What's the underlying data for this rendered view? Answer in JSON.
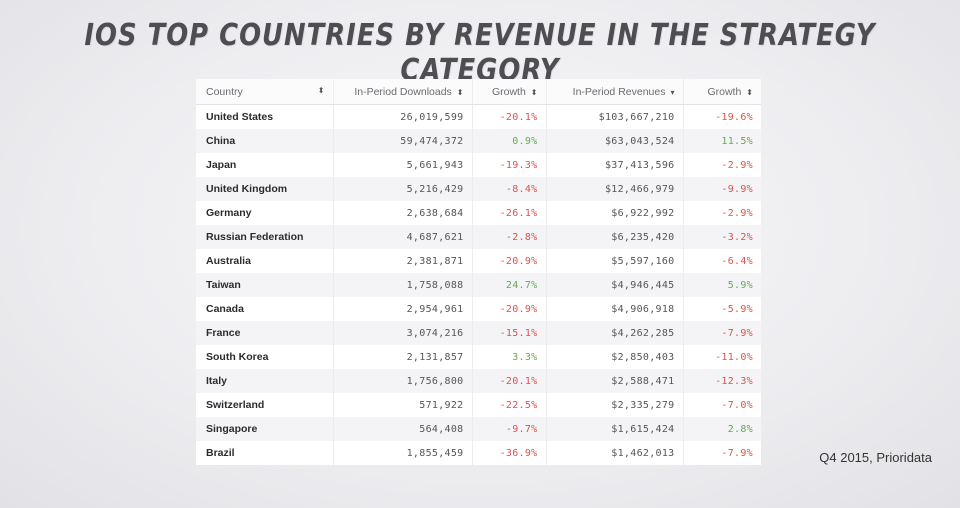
{
  "title": "iOS Top Countries by Revenue in the Strategy Category",
  "source": "Q4 2015, Prioridata",
  "table": {
    "headers": {
      "country": "Country",
      "downloads": "In-Period Downloads",
      "downloads_growth": "Growth",
      "revenues": "In-Period Revenues",
      "revenues_growth": "Growth"
    },
    "sort_icons": {
      "country": "⬍",
      "downloads": "⬍",
      "downloads_growth": "⬍",
      "revenues": "▾",
      "revenues_growth": "⬍"
    },
    "rows": [
      {
        "country": "United States",
        "downloads": "26,019,599",
        "dl_growth": "-20.1%",
        "revenues": "$103,667,210",
        "rev_growth": "-19.6%"
      },
      {
        "country": "China",
        "downloads": "59,474,372",
        "dl_growth": "0.9%",
        "revenues": "$63,043,524",
        "rev_growth": "11.5%"
      },
      {
        "country": "Japan",
        "downloads": "5,661,943",
        "dl_growth": "-19.3%",
        "revenues": "$37,413,596",
        "rev_growth": "-2.9%"
      },
      {
        "country": "United Kingdom",
        "downloads": "5,216,429",
        "dl_growth": "-8.4%",
        "revenues": "$12,466,979",
        "rev_growth": "-9.9%"
      },
      {
        "country": "Germany",
        "downloads": "2,638,684",
        "dl_growth": "-26.1%",
        "revenues": "$6,922,992",
        "rev_growth": "-2.9%"
      },
      {
        "country": "Russian Federation",
        "downloads": "4,687,621",
        "dl_growth": "-2.8%",
        "revenues": "$6,235,420",
        "rev_growth": "-3.2%"
      },
      {
        "country": "Australia",
        "downloads": "2,381,871",
        "dl_growth": "-20.9%",
        "revenues": "$5,597,160",
        "rev_growth": "-6.4%"
      },
      {
        "country": "Taiwan",
        "downloads": "1,758,088",
        "dl_growth": "24.7%",
        "revenues": "$4,946,445",
        "rev_growth": "5.9%"
      },
      {
        "country": "Canada",
        "downloads": "2,954,961",
        "dl_growth": "-20.9%",
        "revenues": "$4,906,918",
        "rev_growth": "-5.9%"
      },
      {
        "country": "France",
        "downloads": "3,074,216",
        "dl_growth": "-15.1%",
        "revenues": "$4,262,285",
        "rev_growth": "-7.9%"
      },
      {
        "country": "South Korea",
        "downloads": "2,131,857",
        "dl_growth": "3.3%",
        "revenues": "$2,850,403",
        "rev_growth": "-11.0%"
      },
      {
        "country": "Italy",
        "downloads": "1,756,800",
        "dl_growth": "-20.1%",
        "revenues": "$2,588,471",
        "rev_growth": "-12.3%"
      },
      {
        "country": "Switzerland",
        "downloads": "571,922",
        "dl_growth": "-22.5%",
        "revenues": "$2,335,279",
        "rev_growth": "-7.0%"
      },
      {
        "country": "Singapore",
        "downloads": "564,408",
        "dl_growth": "-9.7%",
        "revenues": "$1,615,424",
        "rev_growth": "2.8%"
      },
      {
        "country": "Brazil",
        "downloads": "1,855,459",
        "dl_growth": "-36.9%",
        "revenues": "$1,462,013",
        "rev_growth": "-7.9%"
      }
    ]
  },
  "colors": {
    "negative": "#d9534f",
    "positive": "#6aa84f"
  }
}
